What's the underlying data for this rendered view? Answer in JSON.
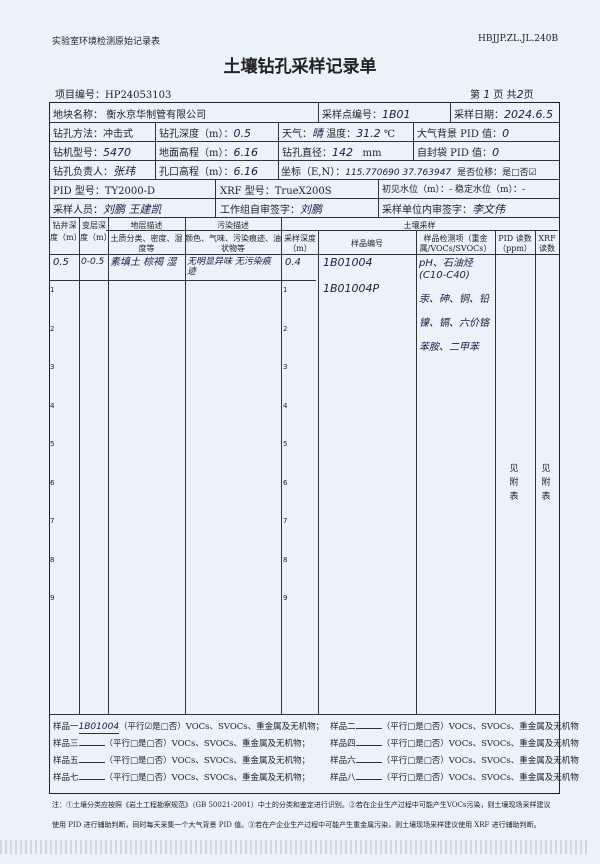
{
  "header": {
    "form_name": "实验室环境检测原始记录表",
    "form_code": "HBJJP.ZL.JL.240B",
    "title": "土壤钻孔采样记录单",
    "project_no_label": "项目编号：",
    "project_no": "HP24053103",
    "page_label_prefix": "第",
    "page_current": "1",
    "page_label_mid": "页 共",
    "page_total": "2",
    "page_label_suffix": "页"
  },
  "info": {
    "plot_name_label": "地块名称：",
    "plot_name": "衡水京华制管有限公司",
    "point_no_label": "采样点编号：",
    "point_no": "1B01",
    "date_label": "采样日期：",
    "date": "2024.6.5",
    "method_label": "钻孔方法：",
    "method": "冲击式",
    "depth_label": "钻孔深度（m）：",
    "depth": "0.5",
    "weather_label": "天气：",
    "weather": "晴",
    "temp_label": "温度：",
    "temp": "31.2",
    "temp_unit": "℃",
    "air_pid_label": "大气背景 PID 值：",
    "air_pid": "0",
    "rig_label": "钻机型号：",
    "rig": "5470",
    "ground_elev_label": "地面高程（m）：",
    "ground_elev": "6.16",
    "diameter_label": "钻孔直径：",
    "diameter": "142",
    "diameter_unit": "mm",
    "bag_pid_label": "自封袋 PID 值：",
    "bag_pid": "0",
    "lead_label": "钻孔负责人：",
    "lead": "张玮",
    "hole_elev_label": "孔口高程（m）：",
    "hole_elev": "6.16",
    "coord_label": "坐标（E,N）：",
    "coord": "115.770690  37.763947",
    "shift_label": "是否位移：是□否☑",
    "pid_model_label": "PID 型号：",
    "pid_model": "TY2000-D",
    "xrf_model_label": "XRF 型号：",
    "xrf_model": "TrueX200S",
    "water_label": "初见水位（m）：",
    "water": "-",
    "stable_water_label": "稳定水位（m）：",
    "stable_water": "-",
    "sampler_label": "采样人员：",
    "sampler": "刘鹏  王建凯",
    "self_check_label": "工作组自审签字：",
    "self_check": "刘鹏",
    "unit_check_label": "采样单位内审签字：",
    "unit_check": "李文伟"
  },
  "table": {
    "h_depth": "钻井深度（m）",
    "h_layer": "变层深度（m）",
    "h_strat": "地层描述",
    "h_strat_sub": "土质分类、密度、湿度等",
    "h_pollut": "污染描述",
    "h_pollut_sub": "颜色、气味、污染痕迹、油状物等",
    "h_soil": "土壤采样",
    "h_sdepth": "采样深度（m）",
    "h_sno": "样品编号",
    "h_items": "样品检测项（重金属/VOCs/SVOCs）",
    "h_pid": "PID 读数（ppm）",
    "h_xrf": "XRF读数",
    "ticks": [
      "1",
      "2",
      "3",
      "4",
      "5",
      "6",
      "7",
      "8",
      "9"
    ],
    "row": {
      "depth": "0.5",
      "layer": "0-0.5",
      "strat": "素填土 棕褐 湿",
      "pollut": "无明显异味 无污染痕迹",
      "sdepth": "0.4",
      "sno1": "1B01004",
      "sno2": "1B01004P",
      "items": [
        "pH、石油烃(C10-C40)",
        "汞、砷、铜、铅",
        "镍、镉、六价铬",
        "苯胺、二甲苯"
      ]
    },
    "pid_note": "见附表",
    "xrf_note": "见附表"
  },
  "samples": [
    {
      "label": "样品一",
      "value": "1B01004",
      "opts": "（平行☑是□否）VOCs、SVOCs、重金属及无机物；"
    },
    {
      "label": "样品二",
      "value": "",
      "opts": "（平行□是□否）VOCs、SVOCs、重金属及无机物"
    },
    {
      "label": "样品三",
      "value": "",
      "opts": "（平行□是□否）VOCs、SVOCs、重金属及无机物；"
    },
    {
      "label": "样品四",
      "value": "",
      "opts": "（平行□是□否）VOCs、SVOCs、重金属及无机物"
    },
    {
      "label": "样品五",
      "value": "",
      "opts": "（平行□是□否）VOCs、SVOCs、重金属及无机物；"
    },
    {
      "label": "样品六",
      "value": "",
      "opts": "（平行□是□否）VOCs、SVOCs、重金属及无机物"
    },
    {
      "label": "样品七",
      "value": "",
      "opts": "（平行□是□否）VOCs、SVOCs、重金属及无机物；"
    },
    {
      "label": "样品八",
      "value": "",
      "opts": "（平行□是□否）VOCs、SVOCs、重金属及无机物"
    }
  ],
  "notes": [
    "注：①土壤分类应按照《岩土工程勘察规范》（GB 50021-2001）中土的分类和鉴定进行识别。②若在企业生产过程中可能产生VOCs污染，则土壤现场采样建议",
    "使用 PID 进行辅助判断，同时每天采集一个大气背景 PID 值。③若在产企业生产过程中可能产生重金属污染，则土壤现场采样建议使用 XRF 进行辅助判断。"
  ]
}
